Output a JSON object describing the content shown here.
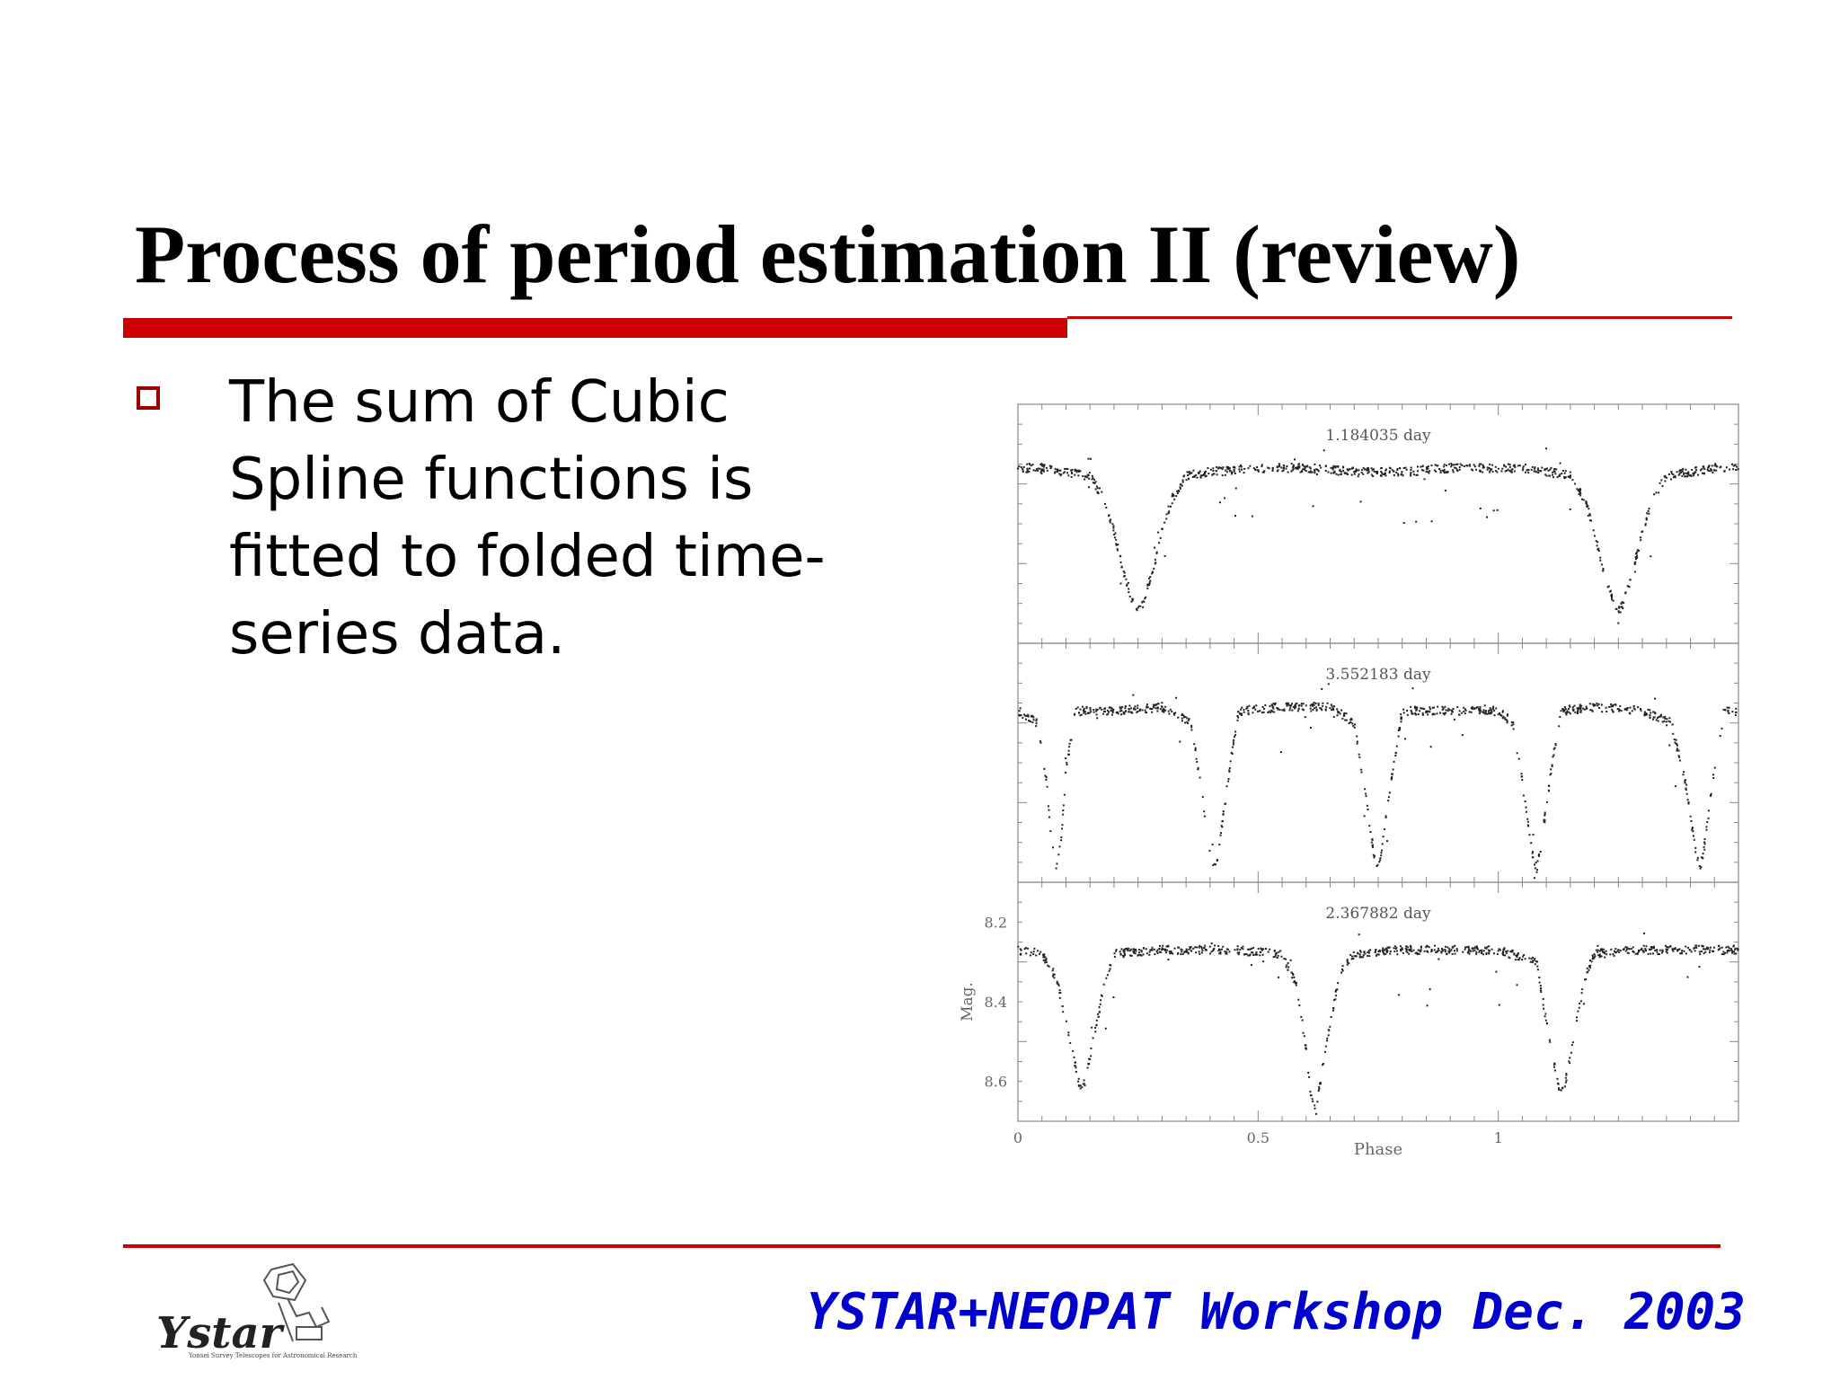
{
  "slide": {
    "title": "Process of period estimation II (review)",
    "bullet_lines": [
      "The sum of Cubic",
      "Spline functions is",
      "fitted to folded time-",
      "series data."
    ],
    "footer": "YSTAR+NEOPAT Workshop Dec. 2003",
    "logo": {
      "text": "Ystar",
      "subtitle": "Yonsei Survey Telescopes for Astronomical Research"
    },
    "colors": {
      "accent_red": "#cc0000",
      "footer_blue": "#0000cc",
      "bullet_red": "#a00000"
    }
  },
  "chart_data": [
    {
      "type": "scatter",
      "annotation": "1.184035 day",
      "xlim": [
        0,
        1.5
      ],
      "ylim": [
        8.7,
        8.1
      ],
      "series": [
        {
          "x": [
            0,
            0.05,
            0.1,
            0.15,
            0.18,
            0.2,
            0.22,
            0.24,
            0.25,
            0.26,
            0.28,
            0.3,
            0.32,
            0.35,
            0.4,
            0.5,
            0.6,
            0.7,
            0.8,
            0.9,
            1.0,
            1.05,
            1.1,
            1.15,
            1.18,
            1.2,
            1.22,
            1.24,
            1.25,
            1.26,
            1.28,
            1.3,
            1.32,
            1.35,
            1.4,
            1.45,
            1.5
          ],
          "y": [
            8.26,
            8.26,
            8.27,
            8.28,
            8.34,
            8.42,
            8.52,
            8.6,
            8.62,
            8.6,
            8.52,
            8.42,
            8.34,
            8.28,
            8.27,
            8.26,
            8.26,
            8.27,
            8.27,
            8.26,
            8.26,
            8.26,
            8.27,
            8.28,
            8.34,
            8.42,
            8.52,
            8.6,
            8.62,
            8.6,
            8.52,
            8.42,
            8.34,
            8.28,
            8.27,
            8.26,
            8.26
          ]
        }
      ]
    },
    {
      "type": "scatter",
      "annotation": "3.552183 day",
      "xlim": [
        0,
        1.5
      ],
      "ylim": [
        8.7,
        8.1
      ],
      "series": [
        {
          "x": [
            0,
            0.04,
            0.06,
            0.07,
            0.08,
            0.09,
            0.1,
            0.12,
            0.2,
            0.3,
            0.36,
            0.38,
            0.4,
            0.41,
            0.42,
            0.44,
            0.46,
            0.55,
            0.65,
            0.7,
            0.72,
            0.74,
            0.75,
            0.76,
            0.78,
            0.8,
            0.9,
            1.0,
            1.03,
            1.05,
            1.07,
            1.08,
            1.09,
            1.11,
            1.13,
            1.2,
            1.3,
            1.36,
            1.39,
            1.41,
            1.42,
            1.43,
            1.45,
            1.47,
            1.5
          ],
          "y": [
            8.27,
            8.3,
            8.45,
            8.6,
            8.67,
            8.6,
            8.42,
            8.27,
            8.27,
            8.26,
            8.3,
            8.45,
            8.62,
            8.67,
            8.6,
            8.42,
            8.27,
            8.26,
            8.26,
            8.3,
            8.45,
            8.62,
            8.67,
            8.6,
            8.42,
            8.27,
            8.27,
            8.27,
            8.3,
            8.45,
            8.62,
            8.67,
            8.6,
            8.42,
            8.27,
            8.26,
            8.27,
            8.3,
            8.45,
            8.62,
            8.67,
            8.6,
            8.42,
            8.27,
            8.27
          ]
        }
      ]
    },
    {
      "type": "scatter",
      "annotation": "2.367882 day",
      "xlabel": "Phase",
      "ylabel": "Mag.",
      "xticks": [
        "0",
        "0.5",
        "1"
      ],
      "yticks": [
        "8.2",
        "8.4",
        "8.6"
      ],
      "xlim": [
        0,
        1.5
      ],
      "ylim": [
        8.7,
        8.1
      ],
      "series": [
        {
          "x": [
            0,
            0.05,
            0.08,
            0.1,
            0.12,
            0.13,
            0.14,
            0.16,
            0.18,
            0.2,
            0.3,
            0.45,
            0.55,
            0.58,
            0.6,
            0.61,
            0.62,
            0.63,
            0.65,
            0.67,
            0.7,
            0.8,
            0.9,
            1.0,
            1.08,
            1.1,
            1.12,
            1.13,
            1.14,
            1.16,
            1.18,
            1.2,
            1.3,
            1.4,
            1.5
          ],
          "y": [
            8.27,
            8.28,
            8.34,
            8.45,
            8.56,
            8.62,
            8.6,
            8.48,
            8.35,
            8.28,
            8.27,
            8.27,
            8.28,
            8.36,
            8.52,
            8.64,
            8.68,
            8.6,
            8.45,
            8.33,
            8.28,
            8.27,
            8.27,
            8.27,
            8.3,
            8.45,
            8.58,
            8.63,
            8.6,
            8.47,
            8.34,
            8.28,
            8.27,
            8.27,
            8.27
          ]
        }
      ]
    }
  ]
}
